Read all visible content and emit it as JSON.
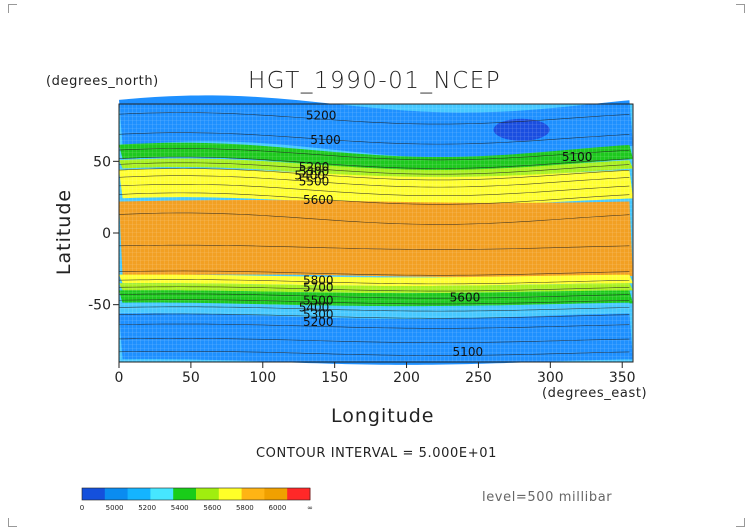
{
  "chart_data": {
    "type": "heatmap",
    "title": "HGT_1990-01_NCEP",
    "ylabel": "Latitude",
    "xlabel": "Longitude",
    "yunit": "(degrees_north)",
    "xunit": "(degrees_east)",
    "xlim": [
      0,
      357.5
    ],
    "ylim": [
      -90,
      90
    ],
    "x_ticks": [
      0,
      50,
      100,
      150,
      200,
      250,
      300,
      350
    ],
    "y_ticks": [
      50,
      0,
      -50
    ],
    "contour_interval_text": "CONTOUR INTERVAL = 5.000E+01",
    "level_text": "level=500 millibar",
    "contour_labels": [
      {
        "text": "5200",
        "x": 130,
        "y": 82
      },
      {
        "text": "5100",
        "x": 133,
        "y": 65
      },
      {
        "text": "5100",
        "x": 308,
        "y": 53
      },
      {
        "text": "5200",
        "x": 125,
        "y": 46
      },
      {
        "text": "5300",
        "x": 125,
        "y": 43
      },
      {
        "text": "5400",
        "x": 122,
        "y": 40
      },
      {
        "text": "5500",
        "x": 125,
        "y": 36
      },
      {
        "text": "5600",
        "x": 128,
        "y": 23
      },
      {
        "text": "5800",
        "x": 128,
        "y": -33
      },
      {
        "text": "5700",
        "x": 128,
        "y": -38
      },
      {
        "text": "5600",
        "x": 230,
        "y": -45
      },
      {
        "text": "5500",
        "x": 128,
        "y": -47
      },
      {
        "text": "5400",
        "x": 125,
        "y": -52
      },
      {
        "text": "5300",
        "x": 128,
        "y": -57
      },
      {
        "text": "5200",
        "x": 128,
        "y": -62
      },
      {
        "text": "5100",
        "x": 232,
        "y": -83
      }
    ],
    "colorbar": {
      "labels": [
        "0",
        "5000",
        "5200",
        "5400",
        "5600",
        "5800",
        "6000",
        "∞"
      ],
      "colors": [
        "#1450dc",
        "#0a8cf0",
        "#14b4ff",
        "#46e6ff",
        "#19cd19",
        "#a0ee0f",
        "#ffff28",
        "#ffb414",
        "#f0a000",
        "#ff2828"
      ]
    },
    "colors": {
      "level_1": "#1a4ee0",
      "level_2": "#1e90ff",
      "level_3": "#46c8ff",
      "level_4": "#1ec81e",
      "level_5": "#a8f020",
      "level_6": "#ffff32",
      "level_7": "#ffc81e",
      "level_8": "#f2a023"
    }
  }
}
